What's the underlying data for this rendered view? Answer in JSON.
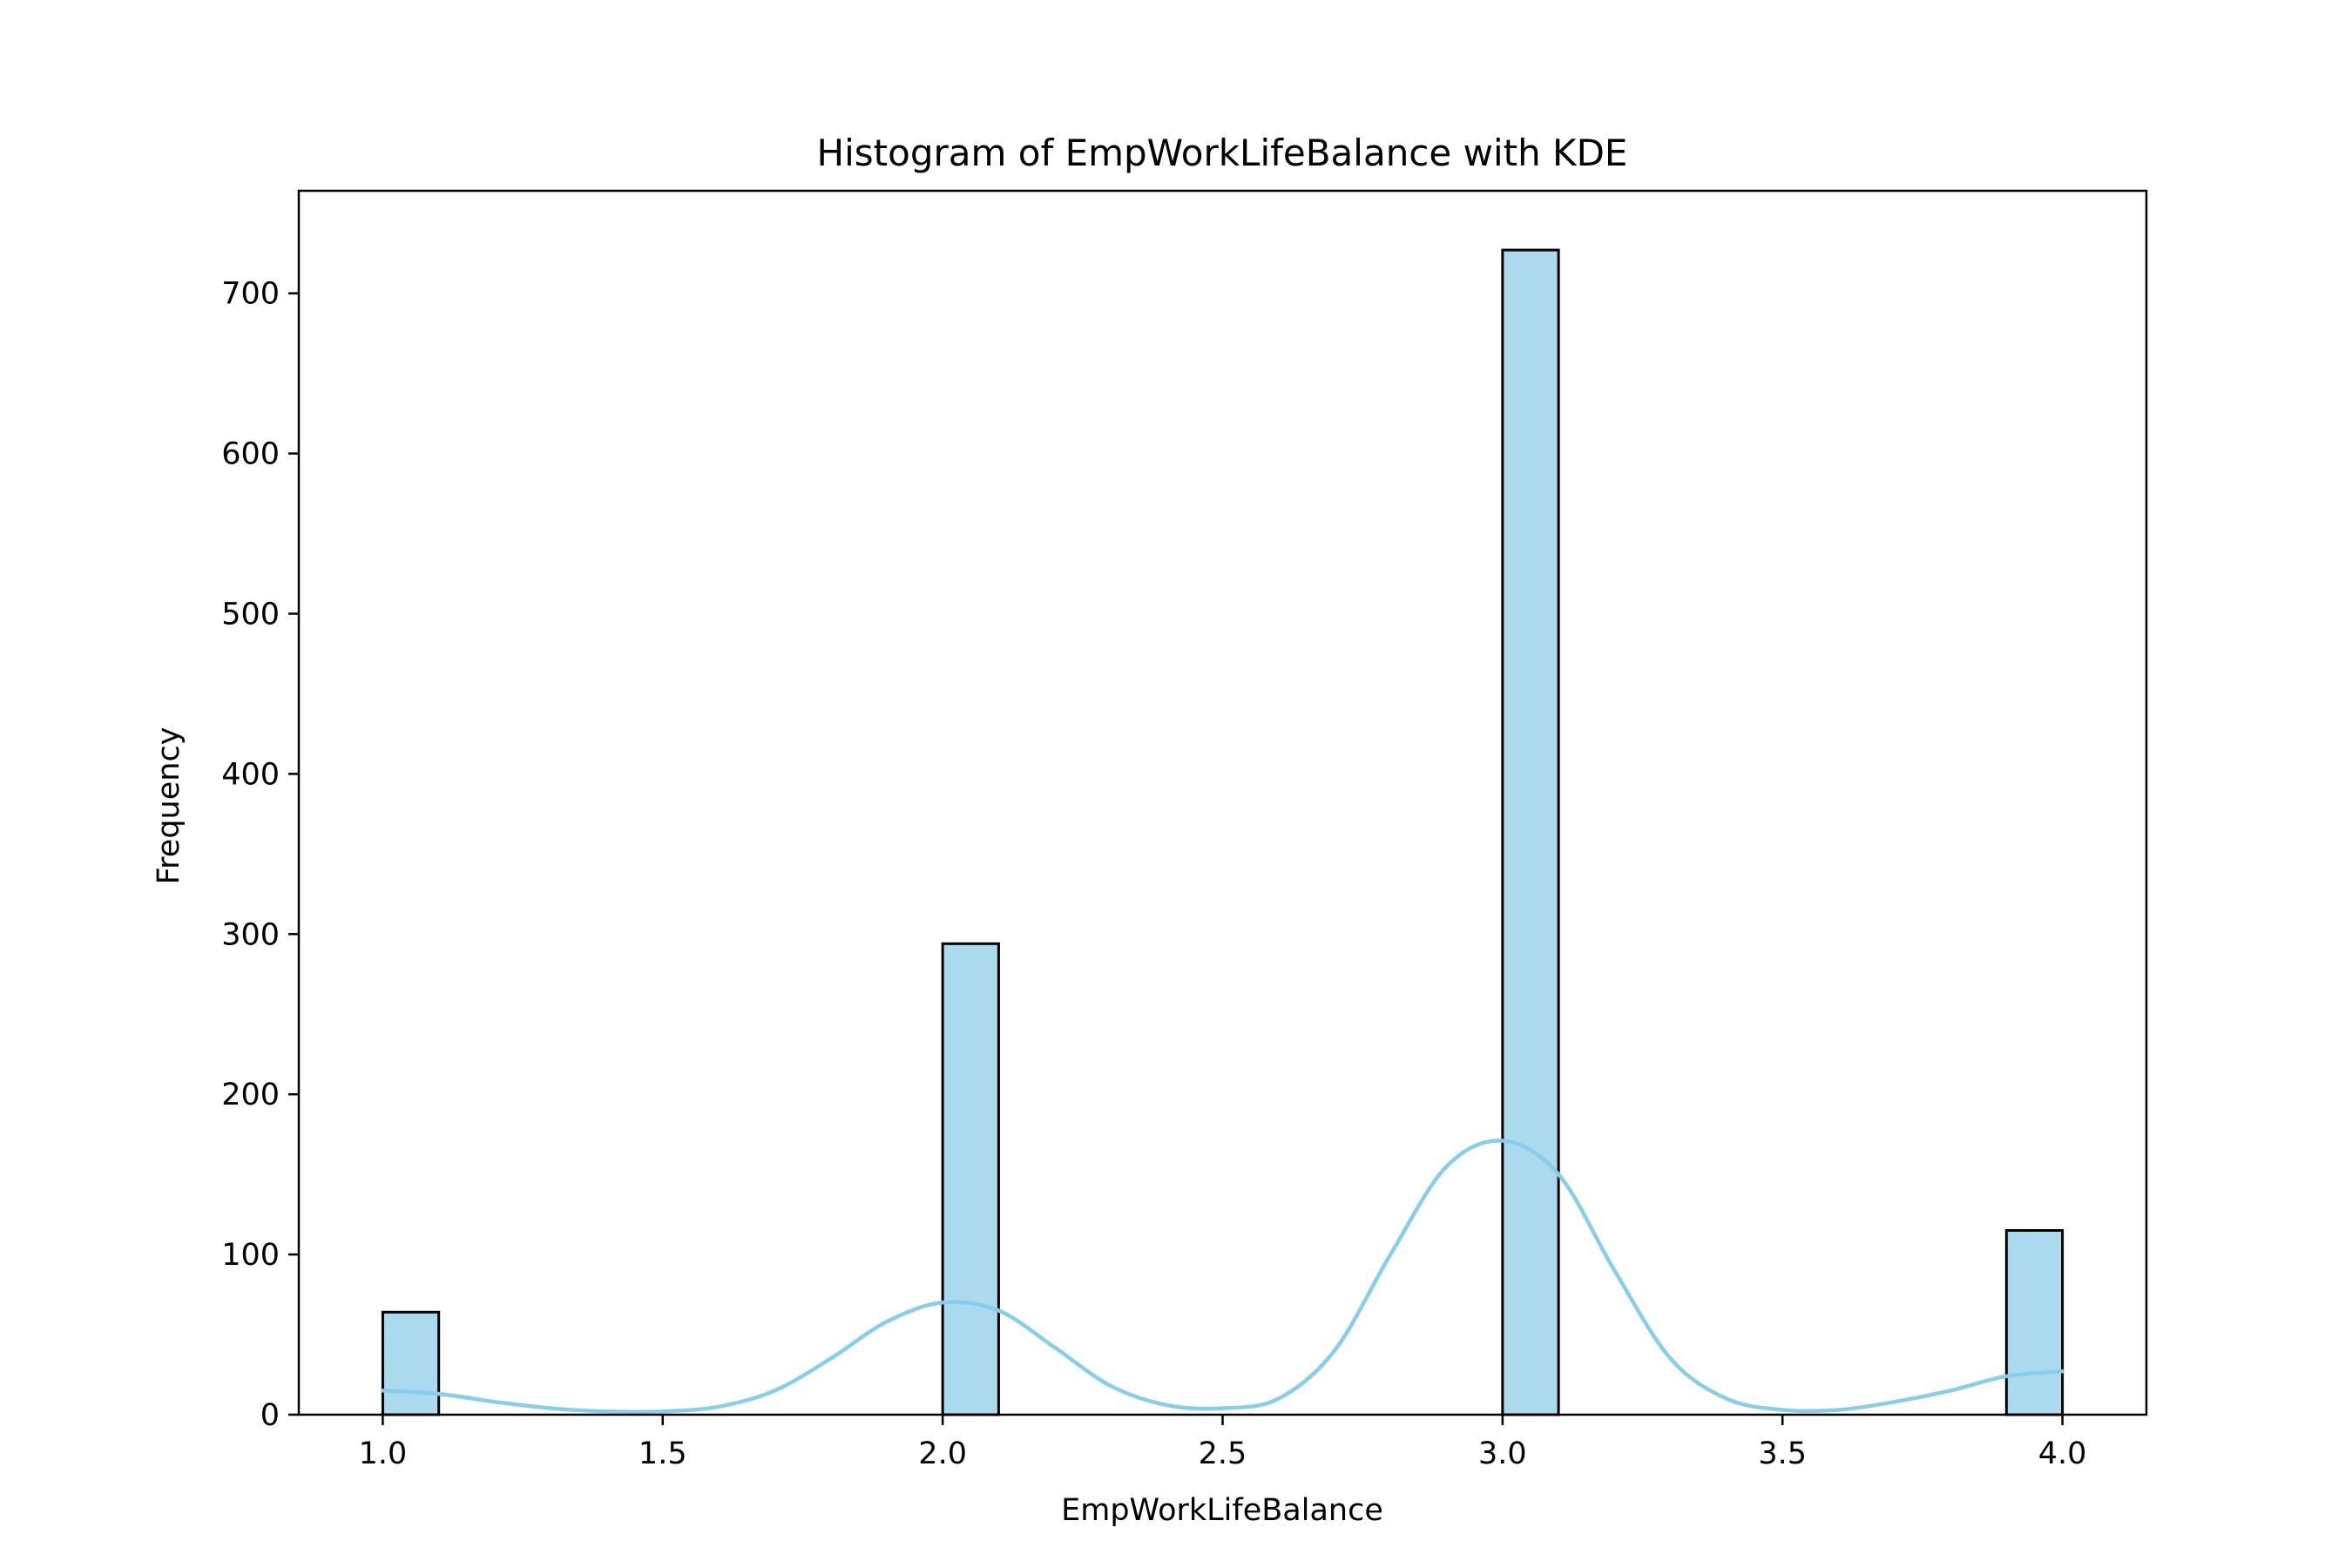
{
  "chart_data": {
    "type": "bar",
    "title": "Histogram of EmpWorkLifeBalance with KDE",
    "xlabel": "EmpWorkLifeBalance",
    "ylabel": "Frequency",
    "xlim": [
      0.85,
      4.15
    ],
    "ylim": [
      0,
      764
    ],
    "xticks": [
      1.0,
      1.5,
      2.0,
      2.5,
      3.0,
      3.5,
      4.0
    ],
    "xtick_labels": [
      "1.0",
      "1.5",
      "2.0",
      "2.5",
      "3.0",
      "3.5",
      "4.0"
    ],
    "yticks": [
      0,
      100,
      200,
      300,
      400,
      500,
      600,
      700
    ],
    "ytick_labels": [
      "0",
      "100",
      "200",
      "300",
      "400",
      "500",
      "600",
      "700"
    ],
    "grid": false,
    "bars": [
      {
        "x0": 1.0,
        "x1": 1.1,
        "value": 64
      },
      {
        "x0": 2.0,
        "x1": 2.1,
        "value": 294
      },
      {
        "x0": 3.0,
        "x1": 3.1,
        "value": 727
      },
      {
        "x0": 3.9,
        "x1": 4.0,
        "value": 115
      }
    ],
    "kde": {
      "x": [
        1.0,
        1.1,
        1.2,
        1.3,
        1.4,
        1.5,
        1.6,
        1.7,
        1.8,
        1.9,
        2.0,
        2.1,
        2.2,
        2.3,
        2.4,
        2.5,
        2.6,
        2.7,
        2.8,
        2.9,
        3.0,
        3.1,
        3.2,
        3.3,
        3.4,
        3.5,
        3.6,
        3.7,
        3.8,
        3.9,
        4.0
      ],
      "y": [
        15,
        13,
        8,
        4,
        2,
        2,
        5,
        15,
        35,
        58,
        70,
        65,
        42,
        18,
        6,
        4,
        10,
        40,
        100,
        155,
        171,
        150,
        90,
        35,
        10,
        3,
        3,
        8,
        15,
        24,
        27
      ]
    },
    "colors": {
      "bar_fill": "#abdaee",
      "bar_edge": "#000000",
      "kde_line": "#87ceeb"
    }
  }
}
